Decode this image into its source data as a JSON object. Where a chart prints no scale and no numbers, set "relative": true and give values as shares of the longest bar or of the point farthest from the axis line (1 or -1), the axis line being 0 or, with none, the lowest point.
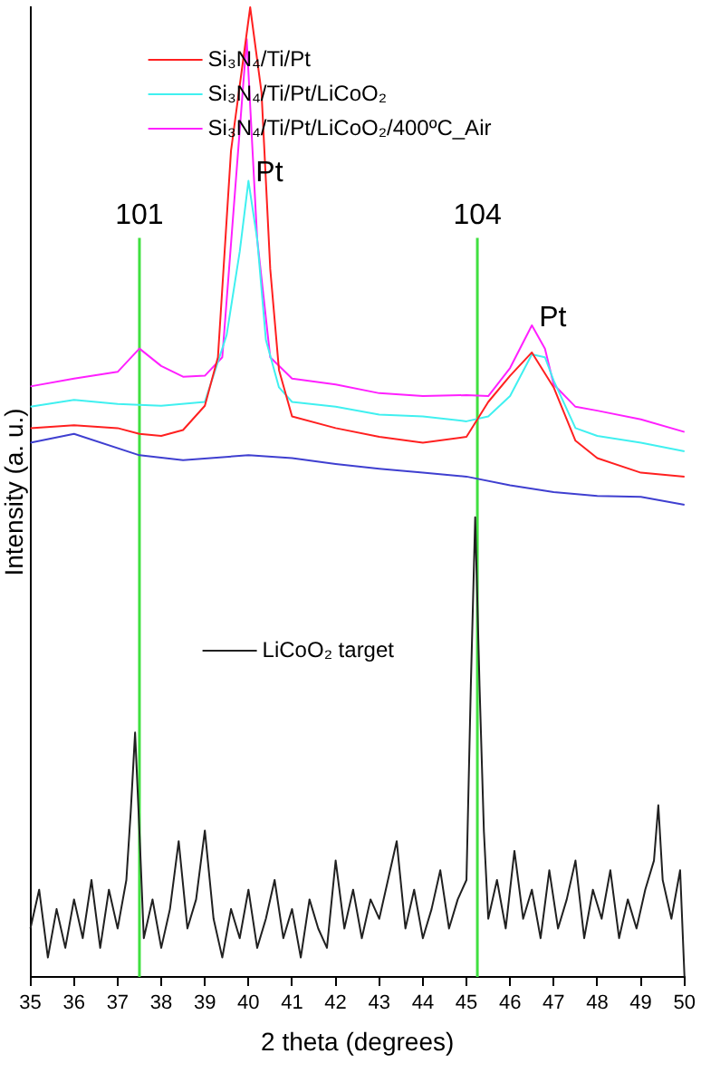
{
  "chart_data": {
    "type": "line",
    "relative": true,
    "xlabel": "2 theta (degrees)",
    "ylabel": "Intensity (a. u.)",
    "xlim": [
      35,
      50
    ],
    "xticks": [
      35,
      36,
      37,
      38,
      39,
      40,
      41,
      42,
      43,
      44,
      45,
      46,
      47,
      48,
      49,
      50
    ],
    "grid": false,
    "legend": "top",
    "marker": "none",
    "line_style": "solid",
    "series": [
      {
        "color": "#3f3fd0",
        "x": [
          35,
          36,
          37.5,
          38.5,
          40,
          41,
          42,
          43,
          44,
          45,
          46,
          47,
          48,
          49,
          50
        ],
        "values": [
          0.551,
          0.56,
          0.538,
          0.533,
          0.538,
          0.535,
          0.529,
          0.524,
          0.52,
          0.516,
          0.507,
          0.5,
          0.496,
          0.495,
          0.487
        ]
      },
      {
        "name": "Si₃N₄/Ti/Pt",
        "color": "#ff2020",
        "x": [
          35,
          36,
          37,
          37.5,
          38,
          38.5,
          39,
          39.3,
          39.6,
          40.04,
          40.3,
          40.5,
          40.7,
          41,
          42,
          43,
          44,
          45,
          45.5,
          46,
          46.5,
          47,
          47.5,
          48,
          49,
          50
        ],
        "values": [
          0.566,
          0.569,
          0.566,
          0.56,
          0.558,
          0.564,
          0.589,
          0.639,
          0.852,
          1,
          0.912,
          0.73,
          0.626,
          0.578,
          0.566,
          0.557,
          0.551,
          0.557,
          0.593,
          0.62,
          0.644,
          0.608,
          0.553,
          0.535,
          0.52,
          0.516
        ]
      },
      {
        "name": "Si₃N₄/Ti/Pt/LiCoO₂",
        "color": "#40f0f0",
        "x": [
          35,
          36,
          37,
          38,
          39,
          39.5,
          39.8,
          40,
          40.2,
          40.4,
          40.7,
          41,
          42,
          43,
          44,
          45,
          45.5,
          46,
          46.5,
          46.8,
          47,
          47.5,
          48,
          49,
          50
        ],
        "values": [
          0.588,
          0.595,
          0.591,
          0.589,
          0.593,
          0.662,
          0.748,
          0.821,
          0.761,
          0.657,
          0.608,
          0.593,
          0.588,
          0.58,
          0.578,
          0.573,
          0.578,
          0.599,
          0.642,
          0.639,
          0.615,
          0.566,
          0.558,
          0.551,
          0.542
        ]
      },
      {
        "name": "Si₃N₄/Ti/Pt/LiCoO₂/400ºC_Air",
        "color": "#ff20ff",
        "x": [
          35,
          36,
          37,
          37.5,
          38,
          38.5,
          39,
          39.4,
          39.96,
          40.2,
          40.5,
          41,
          42,
          43,
          44,
          45,
          45.5,
          46,
          46.5,
          46.8,
          47,
          47.5,
          48,
          49,
          50
        ],
        "values": [
          0.609,
          0.617,
          0.624,
          0.648,
          0.63,
          0.619,
          0.62,
          0.639,
          0.967,
          0.761,
          0.639,
          0.617,
          0.611,
          0.602,
          0.599,
          0.6,
          0.599,
          0.628,
          0.672,
          0.648,
          0.611,
          0.588,
          0.584,
          0.575,
          0.562
        ]
      },
      {
        "name": "LiCoO₂ target",
        "color": "#202020",
        "x": [
          35,
          35.2,
          35.4,
          35.6,
          35.8,
          36,
          36.2,
          36.4,
          36.6,
          36.8,
          37,
          37.2,
          37.3,
          37.4,
          37.5,
          37.6,
          37.8,
          38,
          38.2,
          38.4,
          38.6,
          38.8,
          39,
          39.2,
          39.4,
          39.6,
          39.8,
          40,
          40.2,
          40.4,
          40.6,
          40.8,
          41,
          41.2,
          41.4,
          41.6,
          41.8,
          42,
          42.2,
          42.4,
          42.6,
          42.8,
          43,
          43.2,
          43.4,
          43.6,
          43.8,
          44,
          44.2,
          44.4,
          44.6,
          44.8,
          45,
          45.1,
          45.2,
          45.3,
          45.4,
          45.5,
          45.7,
          45.9,
          46.1,
          46.3,
          46.5,
          46.7,
          46.9,
          47.1,
          47.3,
          47.5,
          47.7,
          47.9,
          48.1,
          48.3,
          48.5,
          48.7,
          48.9,
          49.1,
          49.3,
          49.4,
          49.5,
          49.7,
          49.9,
          50
        ],
        "values": [
          0.05,
          0.09,
          0.02,
          0.07,
          0.03,
          0.08,
          0.04,
          0.1,
          0.03,
          0.09,
          0.05,
          0.1,
          0.17,
          0.252,
          0.15,
          0.04,
          0.08,
          0.03,
          0.07,
          0.14,
          0.05,
          0.08,
          0.151,
          0.06,
          0.02,
          0.07,
          0.04,
          0.09,
          0.03,
          0.06,
          0.1,
          0.04,
          0.07,
          0.02,
          0.08,
          0.05,
          0.03,
          0.12,
          0.05,
          0.09,
          0.04,
          0.08,
          0.06,
          0.1,
          0.14,
          0.05,
          0.09,
          0.04,
          0.07,
          0.11,
          0.05,
          0.08,
          0.1,
          0.3,
          0.474,
          0.3,
          0.15,
          0.06,
          0.1,
          0.05,
          0.13,
          0.06,
          0.09,
          0.04,
          0.11,
          0.05,
          0.08,
          0.12,
          0.04,
          0.09,
          0.06,
          0.11,
          0.04,
          0.08,
          0.05,
          0.09,
          0.12,
          0.177,
          0.1,
          0.06,
          0.11,
          0
        ]
      }
    ],
    "ref_lines": [
      {
        "axis": "x",
        "value": 37.5,
        "color": "#40e040"
      },
      {
        "axis": "x",
        "value": 45.25,
        "color": "#40e040"
      }
    ],
    "annotations": [
      {
        "text": "101",
        "x": 37.5,
        "y": 0.766
      },
      {
        "text": "104",
        "x": 45.25,
        "y": 0.766
      },
      {
        "text": "Pt",
        "x": 40,
        "y": 0.821
      },
      {
        "text": "Pt",
        "x": 46.5,
        "y": 0.672
      }
    ]
  }
}
